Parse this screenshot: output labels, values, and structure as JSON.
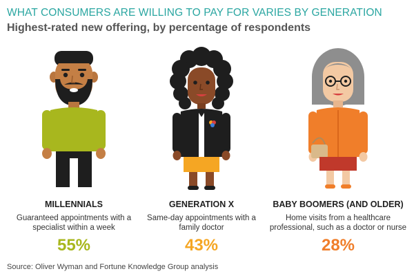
{
  "header": {
    "title": "WHAT CONSUMERS ARE WILLING TO PAY FOR VARIES BY GENERATION",
    "subtitle": "Highest-rated new offering, by percentage of respondents"
  },
  "columns": [
    {
      "label": "MILLENNIALS",
      "description": "Guaranteed appointments with a specialist within a week",
      "percent": "55%",
      "color": "#a8b71e",
      "icon": "millennial-man-illustration"
    },
    {
      "label": "GENERATION X",
      "description": "Same-day appointments with a family doctor",
      "percent": "43%",
      "color": "#f5a623",
      "icon": "generation-x-woman-illustration"
    },
    {
      "label": "BABY BOOMERS (AND OLDER)",
      "description": "Home visits from a healthcare professional, such as a doctor or nurse",
      "percent": "28%",
      "color": "#f07e2a",
      "icon": "baby-boomer-woman-illustration"
    }
  ],
  "footer": {
    "source": "Source: Oliver Wyman and Fortune Knowledge Group analysis"
  }
}
